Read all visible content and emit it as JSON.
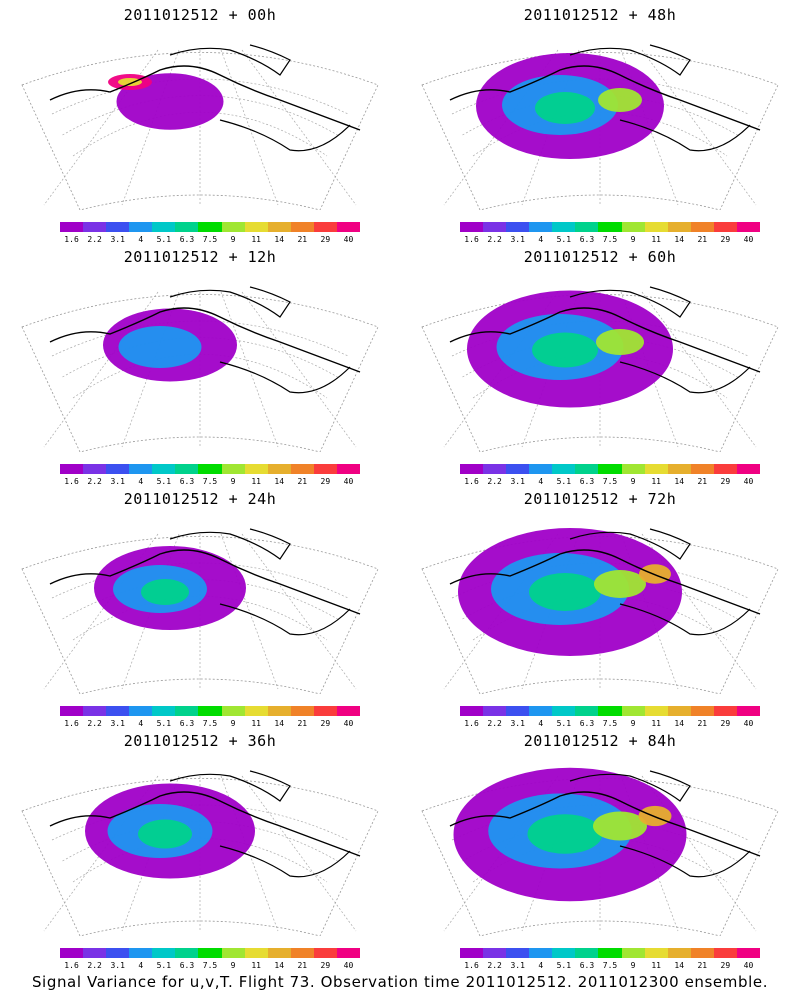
{
  "panels": [
    {
      "title": "2011012512 + 00h",
      "intensity": 0.15
    },
    {
      "title": "2011012512 + 48h",
      "intensity": 0.6
    },
    {
      "title": "2011012512 + 12h",
      "intensity": 0.3
    },
    {
      "title": "2011012512 + 60h",
      "intensity": 0.7
    },
    {
      "title": "2011012512 + 24h",
      "intensity": 0.4
    },
    {
      "title": "2011012512 + 72h",
      "intensity": 0.8
    },
    {
      "title": "2011012512 + 36h",
      "intensity": 0.5
    },
    {
      "title": "2011012512 + 84h",
      "intensity": 0.85
    }
  ],
  "colorbar": {
    "labels": [
      "1.6",
      "2.2",
      "3.1",
      "4",
      "5.1",
      "6.3",
      "7.5",
      "9",
      "11",
      "14",
      "21",
      "29",
      "40"
    ],
    "colors": [
      "#a000c8",
      "#7a32e6",
      "#3c50f0",
      "#1e96f0",
      "#00c8c8",
      "#00d28c",
      "#00dc00",
      "#a0e632",
      "#e6dc32",
      "#e6af2d",
      "#f08228",
      "#fa3c3c",
      "#f00082"
    ]
  },
  "caption": "Signal Variance for u,v,T. Flight 73. Observation time 2011012512. 2011012300 ensemble."
}
